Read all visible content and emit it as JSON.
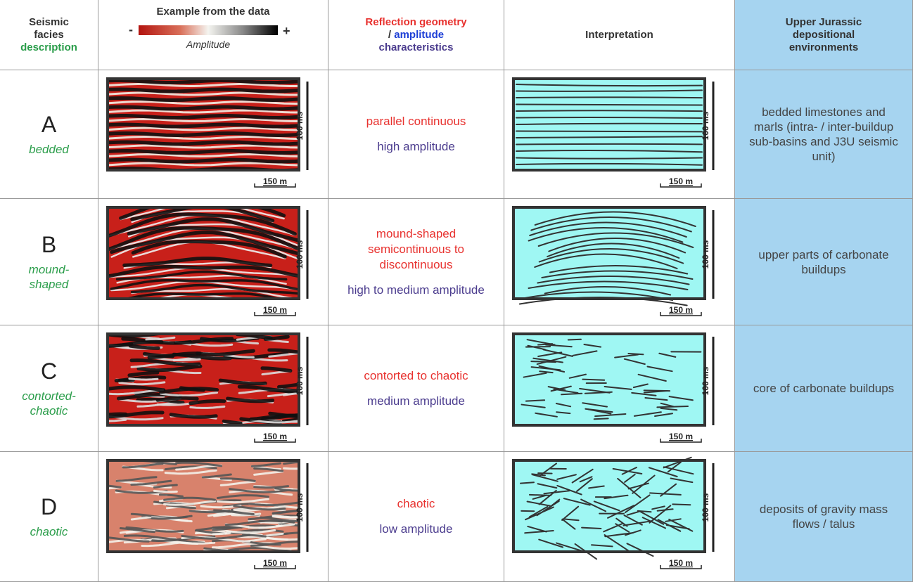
{
  "header": {
    "col1": {
      "title": "Seismic facies",
      "subtitle": "description"
    },
    "col2": {
      "title": "Example from the data",
      "colorbar_min": "-",
      "colorbar_max": "+",
      "colorbar_label": "Amplitude"
    },
    "col3": {
      "geometry": "Reflection geometry",
      "separator": "/",
      "amplitude": "amplitude",
      "characteristics": "characteristics"
    },
    "col4": "Interpretation",
    "col5": "Upper Jurassic depositional environments"
  },
  "scale_labels": {
    "vertical": "100 ms",
    "horizontal": "150 m"
  },
  "rows": [
    {
      "letter": "A",
      "description": "bedded",
      "geometry": "parallel continuous",
      "amplitude": "high amplitude",
      "environment": "bedded limestones and marls (intra- / inter-buildup sub-basins and J3U seismic unit)"
    },
    {
      "letter": "B",
      "description": "mound-shaped",
      "geometry": "mound-shaped semicontinuous to discontinuous",
      "amplitude": "high to medium amplitude",
      "environment": "upper parts of carbonate buildups"
    },
    {
      "letter": "C",
      "description": "contorted-chaotic",
      "geometry": "contorted to chaotic",
      "amplitude": "medium amplitude",
      "environment": "core of carbonate buildups"
    },
    {
      "letter": "D",
      "description": "chaotic",
      "geometry": "chaotic",
      "amplitude": "low amplitude",
      "environment": "deposits of gravity mass flows / talus"
    }
  ]
}
